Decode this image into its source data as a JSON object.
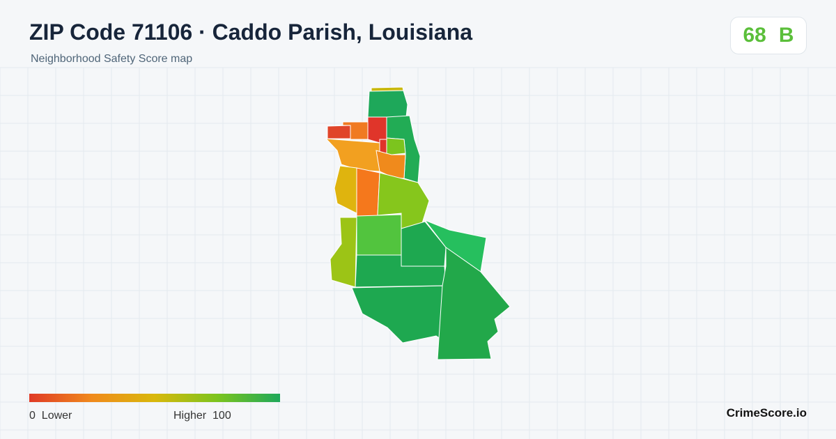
{
  "header": {
    "title": "ZIP Code 71106 · Caddo Parish, Louisiana",
    "subtitle": "Neighborhood Safety Score map",
    "score": 68,
    "grade": "B"
  },
  "legend": {
    "min": 0,
    "low_label": "Lower",
    "high_label": "Higher",
    "max": 100
  },
  "footer": {
    "brand": "CrimeScore.io"
  }
}
